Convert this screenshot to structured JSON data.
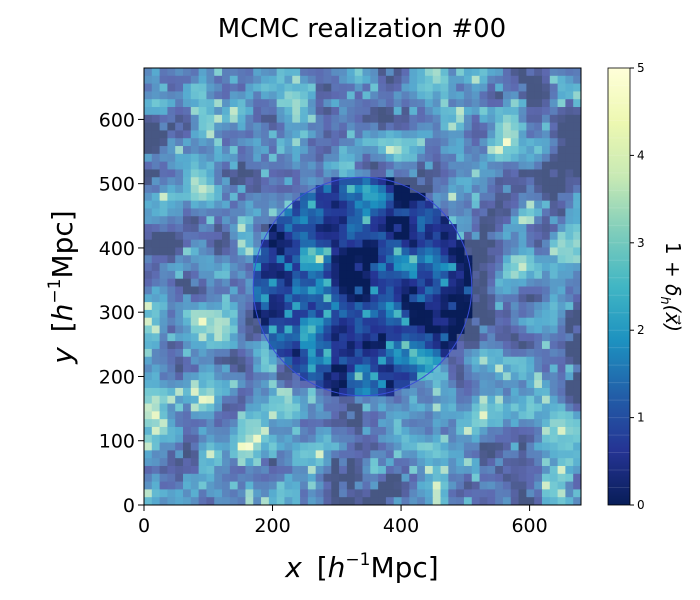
{
  "chart_data": {
    "type": "heatmap",
    "title": "MCMC realization #00",
    "xlabel": {
      "italic": "x",
      "bracket_open": "[",
      "h": "h",
      "sup": "−1",
      "unit": "Mpc]"
    },
    "ylabel": {
      "italic": "y",
      "bracket_open": "[",
      "h": "h",
      "sup": "−1",
      "unit": "Mpc]"
    },
    "colorbar_label": {
      "prefix": "1 + ",
      "delta": "δ",
      "sub": "h",
      "arg": "(x⃗)"
    },
    "xlim": [
      0,
      680
    ],
    "ylim": [
      0,
      680
    ],
    "x_ticks": [
      0,
      200,
      400,
      600
    ],
    "y_ticks": [
      0,
      100,
      200,
      300,
      400,
      500,
      600
    ],
    "colorbar_range": [
      0,
      5
    ],
    "colorbar_ticks": [
      0,
      1,
      2,
      3,
      4,
      5
    ],
    "colormap": "YlGnBu_r",
    "colormap_stops": [
      "#081d58",
      "#253494",
      "#225ea8",
      "#1d91c0",
      "#41b6c4",
      "#7fcdbb",
      "#c7e9b4",
      "#edf8b1",
      "#ffffd9"
    ],
    "circle_region": {
      "center_x": 340,
      "center_y": 340,
      "radius": 170,
      "note_overlay": "inside circle shown at full saturation; outside faded"
    }
  },
  "colors": {
    "axis": "#000000",
    "circle_edge": "#3a4fd8"
  }
}
